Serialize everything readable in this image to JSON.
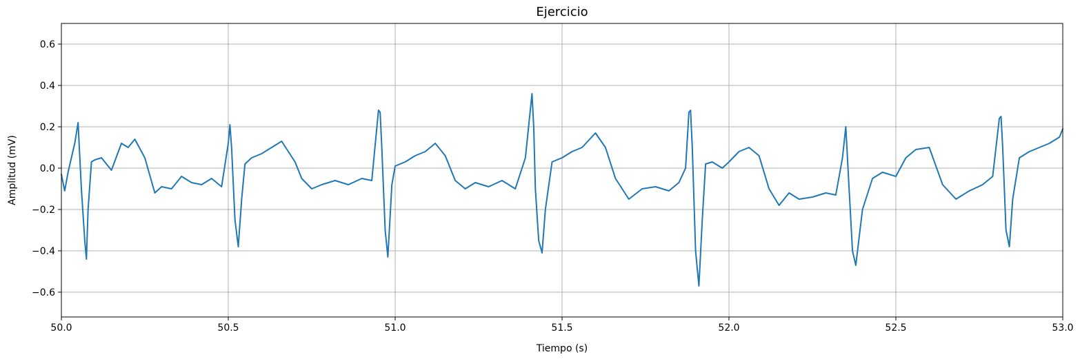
{
  "chart_data": {
    "type": "line",
    "title": "Ejercicio",
    "xlabel": "Tiempo (s)",
    "ylabel": "Amplitud (mV)",
    "xlim": [
      50.0,
      53.0
    ],
    "ylim": [
      -0.72,
      0.7
    ],
    "grid": true,
    "x_ticks": [
      50.0,
      50.5,
      51.0,
      51.5,
      52.0,
      52.5,
      53.0
    ],
    "x_tick_labels": [
      "50.0",
      "50.5",
      "51.0",
      "51.5",
      "52.0",
      "52.5",
      "53.0"
    ],
    "y_ticks": [
      -0.6,
      -0.4,
      -0.2,
      0.0,
      0.2,
      0.4,
      0.6
    ],
    "y_tick_labels": [
      "−0.6",
      "−0.4",
      "−0.2",
      "0.0",
      "0.2",
      "0.4",
      "0.6"
    ],
    "series": [
      {
        "color": "#1f77b4",
        "x": [
          50.0,
          50.01,
          50.02,
          50.03,
          50.04,
          50.05,
          50.06,
          50.07,
          50.075,
          50.08,
          50.09,
          50.1,
          50.12,
          50.15,
          50.18,
          50.2,
          50.22,
          50.25,
          50.28,
          50.3,
          50.33,
          50.36,
          50.39,
          50.42,
          50.45,
          50.48,
          50.5,
          50.505,
          50.51,
          50.52,
          50.53,
          50.54,
          50.55,
          50.57,
          50.6,
          50.63,
          50.66,
          50.7,
          50.72,
          50.75,
          50.78,
          50.82,
          50.86,
          50.9,
          50.93,
          50.95,
          50.955,
          50.96,
          50.97,
          50.978,
          50.99,
          51.0,
          51.03,
          51.06,
          51.09,
          51.12,
          51.15,
          51.18,
          51.21,
          51.24,
          51.28,
          51.32,
          51.36,
          51.39,
          51.41,
          51.415,
          51.42,
          51.43,
          51.44,
          51.45,
          51.47,
          51.5,
          51.53,
          51.56,
          51.6,
          51.63,
          51.66,
          51.7,
          51.74,
          51.78,
          51.82,
          51.85,
          51.87,
          51.88,
          51.885,
          51.89,
          51.9,
          51.91,
          51.92,
          51.93,
          51.95,
          51.98,
          52.0,
          52.03,
          52.06,
          52.09,
          52.12,
          52.15,
          52.18,
          52.21,
          52.25,
          52.29,
          52.32,
          52.34,
          52.35,
          52.36,
          52.37,
          52.38,
          52.4,
          52.43,
          52.46,
          52.5,
          52.53,
          52.56,
          52.6,
          52.64,
          52.68,
          52.72,
          52.76,
          52.79,
          52.81,
          52.815,
          52.82,
          52.83,
          52.84,
          52.85,
          52.87,
          52.9,
          52.93,
          52.96,
          52.99,
          53.0
        ],
        "y": [
          -0.03,
          -0.11,
          -0.02,
          0.05,
          0.12,
          0.22,
          -0.1,
          -0.35,
          -0.44,
          -0.2,
          0.03,
          0.04,
          0.05,
          -0.01,
          0.12,
          0.1,
          0.14,
          0.05,
          -0.12,
          -0.09,
          -0.1,
          -0.04,
          -0.07,
          -0.08,
          -0.05,
          -0.09,
          0.12,
          0.21,
          0.1,
          -0.25,
          -0.38,
          -0.15,
          0.02,
          0.05,
          0.07,
          0.1,
          0.13,
          0.03,
          -0.05,
          -0.1,
          -0.08,
          -0.06,
          -0.08,
          -0.05,
          -0.06,
          0.28,
          0.27,
          0.1,
          -0.3,
          -0.43,
          -0.08,
          0.01,
          0.03,
          0.06,
          0.08,
          0.12,
          0.06,
          -0.06,
          -0.1,
          -0.07,
          -0.09,
          -0.06,
          -0.1,
          0.05,
          0.36,
          0.2,
          -0.1,
          -0.35,
          -0.41,
          -0.2,
          0.03,
          0.05,
          0.08,
          0.1,
          0.17,
          0.1,
          -0.05,
          -0.15,
          -0.1,
          -0.09,
          -0.11,
          -0.07,
          0.0,
          0.27,
          0.28,
          0.1,
          -0.4,
          -0.57,
          -0.25,
          0.02,
          0.03,
          0.0,
          0.03,
          0.08,
          0.1,
          0.06,
          -0.1,
          -0.18,
          -0.12,
          -0.15,
          -0.14,
          -0.12,
          -0.13,
          0.05,
          0.2,
          -0.1,
          -0.4,
          -0.47,
          -0.2,
          -0.05,
          -0.02,
          -0.04,
          0.05,
          0.09,
          0.1,
          -0.08,
          -0.15,
          -0.11,
          -0.08,
          -0.04,
          0.24,
          0.25,
          0.1,
          -0.3,
          -0.38,
          -0.15,
          0.05,
          0.08,
          0.1,
          0.12,
          0.15,
          0.19
        ]
      }
    ]
  }
}
